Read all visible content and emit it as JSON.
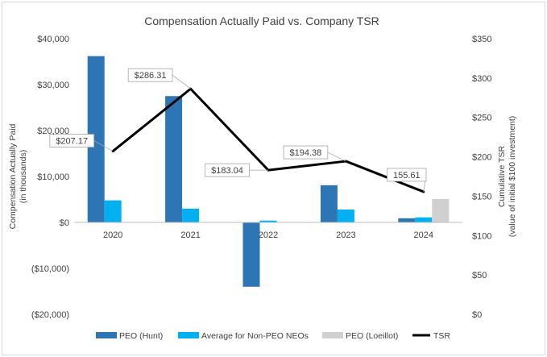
{
  "chart_data": {
    "type": "bar",
    "title": "Compensation Actually Paid vs. Company TSR",
    "categories": [
      "2020",
      "2021",
      "2022",
      "2023",
      "2024"
    ],
    "ylabel": "Compensation Actually Paid\n(in thousands)",
    "y2label": "Cumulative TSR\n(value of initial $100 investment)",
    "ylim": [
      -20000,
      40000
    ],
    "y2lim": [
      0,
      350
    ],
    "yticks": [
      {
        "value": 40000,
        "label": "$40,000"
      },
      {
        "value": 30000,
        "label": "$30,000"
      },
      {
        "value": 20000,
        "label": "$20,000"
      },
      {
        "value": 10000,
        "label": "$10,000"
      },
      {
        "value": 0,
        "label": "$0"
      },
      {
        "value": -10000,
        "label": "($10,000)"
      },
      {
        "value": -20000,
        "label": "($20,000)"
      }
    ],
    "y2ticks": [
      {
        "value": 350,
        "label": "$350"
      },
      {
        "value": 300,
        "label": "$300"
      },
      {
        "value": 250,
        "label": "$250"
      },
      {
        "value": 200,
        "label": "$200"
      },
      {
        "value": 150,
        "label": "$150"
      },
      {
        "value": 100,
        "label": "$100"
      },
      {
        "value": 50,
        "label": "$50"
      },
      {
        "value": 0,
        "label": "$0"
      }
    ],
    "series": [
      {
        "name": "PEO (Hunt)",
        "kind": "bar",
        "axis": "left",
        "color": "#2e75b6",
        "values": [
          36200,
          27500,
          -14000,
          8100,
          900
        ]
      },
      {
        "name": "Average for Non-PEO NEOs",
        "kind": "bar",
        "axis": "left",
        "color": "#00b0f0",
        "values": [
          4800,
          3000,
          400,
          2800,
          1100
        ]
      },
      {
        "name": "PEO (Loeillot)",
        "kind": "bar",
        "axis": "left",
        "color": "#d0d0d0",
        "values": [
          null,
          null,
          null,
          null,
          5100
        ]
      },
      {
        "name": "TSR",
        "kind": "line",
        "axis": "right",
        "color": "#000000",
        "values": [
          207.17,
          286.31,
          183.04,
          194.38,
          155.61
        ]
      }
    ],
    "tsr_labels": [
      "$207.17",
      "$286.31",
      "$183.04",
      "$194.38",
      "155.61"
    ],
    "legend": "bottom"
  }
}
